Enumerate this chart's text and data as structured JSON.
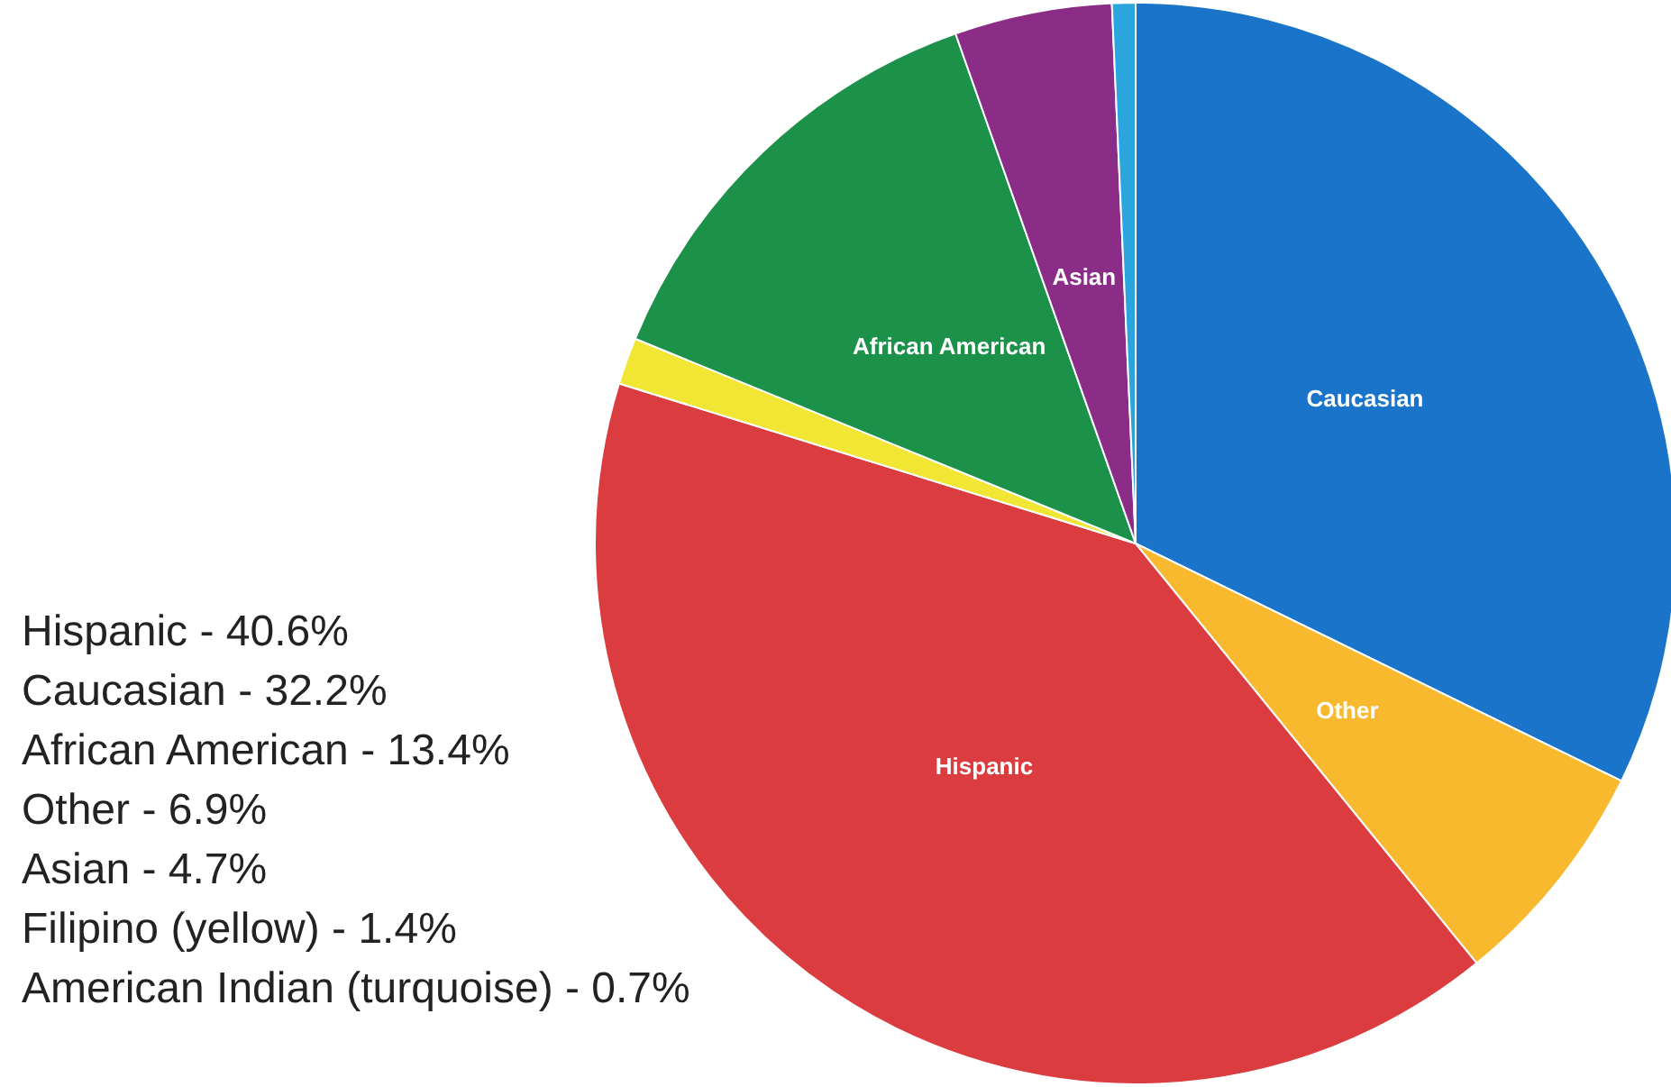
{
  "chart_data": {
    "type": "pie",
    "categories": [
      "Caucasian",
      "Other",
      "Hispanic",
      null,
      "African American",
      "Asian",
      null
    ],
    "values": [
      32.2,
      6.9,
      40.6,
      1.4,
      13.4,
      4.7,
      0.7
    ],
    "colors": [
      "#1a74c9",
      "#f8b92f",
      "#db3c3f",
      "#f2e634",
      "#1c9149",
      "#8b2d86",
      "#2ba5de"
    ],
    "legend": false,
    "annotations": [
      "Hispanic - 40.6%",
      "Caucasian - 32.2%",
      "African American - 13.4%",
      "Other - 6.9%",
      "Asian - 4.7%",
      "Filipino (yellow) - 1.4%",
      "American Indian (turquoise) - 0.7%"
    ]
  }
}
